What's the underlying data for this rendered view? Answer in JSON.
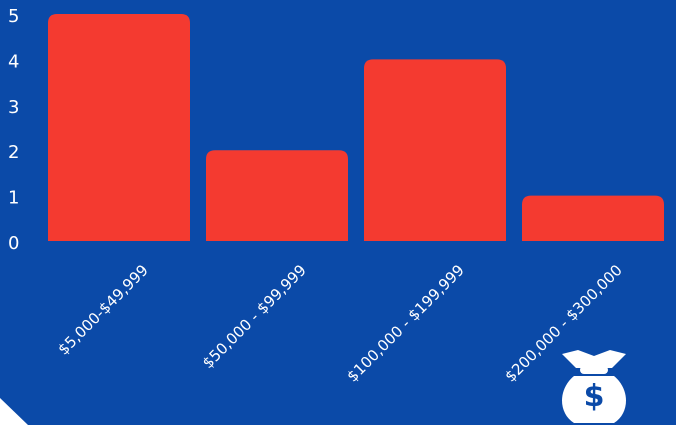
{
  "chart_data": {
    "type": "bar",
    "categories": [
      "$5,000-$49,999",
      "$50,000 - $99,999",
      "$100,000 - $199,999",
      "$200,000 - $300,000"
    ],
    "values": [
      5,
      2,
      4,
      1
    ],
    "ylim": [
      0,
      5
    ],
    "yticks": [
      "0",
      "1",
      "2",
      "3",
      "4",
      "5"
    ],
    "grid": false,
    "legend": "none",
    "colors": {
      "background": "#0b4aa8",
      "bar": "#f43a30",
      "text": "#ffffff"
    }
  },
  "icons": {
    "corner": "corner-triangle",
    "bag": "money-bag-icon"
  }
}
